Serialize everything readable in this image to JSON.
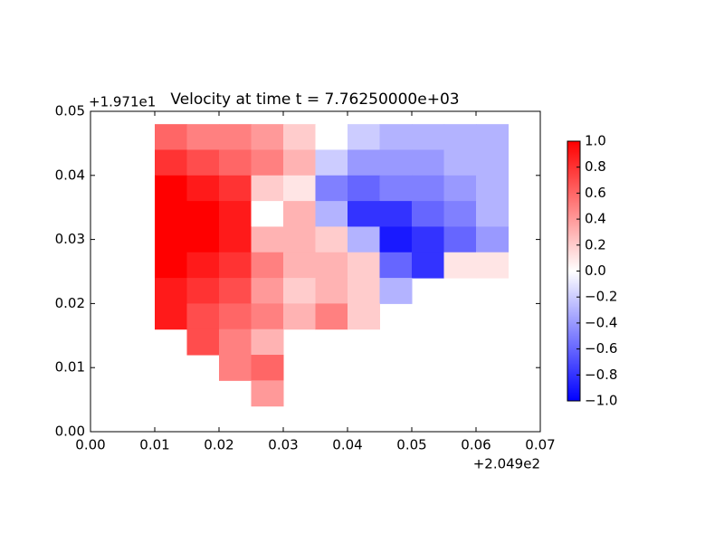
{
  "chart_data": {
    "type": "heatmap",
    "title": "Velocity at time t = 7.76250000e+03",
    "x_offset_label": "+2.049e2",
    "y_offset_label": "+1.971e1",
    "colormap": "bwr",
    "clim": [
      -1,
      1
    ],
    "xlim": [
      0,
      0.07
    ],
    "ylim": [
      0,
      0.05
    ],
    "xticks": [
      {
        "value": 0,
        "label": "0.00"
      },
      0.01,
      0.02,
      0.03,
      0.04,
      0.05,
      0.06,
      0.07
    ],
    "yticks": [
      {
        "value": 0,
        "label": "0.00"
      },
      0.01,
      0.02,
      0.03,
      0.04,
      0.05
    ],
    "colorbar_ticks": [
      {
        "value": -1,
        "label": "−1.0"
      },
      {
        "value": -0.8,
        "label": "−0.8"
      },
      {
        "value": -0.6,
        "label": "−0.6"
      },
      {
        "value": -0.4,
        "label": "−0.4"
      },
      {
        "value": -0.2,
        "label": "−0.2"
      },
      {
        "value": 0,
        "label": "0.0"
      },
      0.2,
      0.4,
      0.6,
      0.8,
      {
        "value": 1,
        "label": "1.0"
      }
    ],
    "x": [
      0.0075,
      0.0125,
      0.0175,
      0.0225,
      0.0275,
      0.0325,
      0.0375,
      0.0425,
      0.0475,
      0.0525,
      0.0575,
      0.0625
    ],
    "y": [
      0.046,
      0.042,
      0.038,
      0.034,
      0.03,
      0.026,
      0.022,
      0.018,
      0.014,
      0.01,
      0.006
    ],
    "z": [
      [
        null,
        0.6,
        0.5,
        0.5,
        0.4,
        0.2,
        0.0,
        -0.2,
        -0.3,
        -0.3,
        -0.3,
        -0.3
      ],
      [
        null,
        0.8,
        0.7,
        0.6,
        0.5,
        0.3,
        -0.2,
        -0.4,
        -0.4,
        -0.4,
        -0.3,
        -0.3
      ],
      [
        null,
        1.0,
        0.9,
        0.8,
        0.2,
        0.1,
        -0.5,
        -0.6,
        -0.5,
        -0.5,
        -0.4,
        -0.3
      ],
      [
        null,
        1.0,
        1.0,
        0.9,
        0.0,
        0.3,
        -0.3,
        -0.8,
        -0.8,
        -0.6,
        -0.5,
        -0.3
      ],
      [
        null,
        1.0,
        1.0,
        0.9,
        0.3,
        0.3,
        0.2,
        -0.3,
        -0.9,
        -0.8,
        -0.6,
        -0.4
      ],
      [
        null,
        1.0,
        0.9,
        0.8,
        0.5,
        0.3,
        0.3,
        0.2,
        -0.6,
        -0.8,
        0.1,
        0.1
      ],
      [
        null,
        0.9,
        0.8,
        0.7,
        0.4,
        0.2,
        0.3,
        0.2,
        -0.3,
        null,
        null,
        null
      ],
      [
        null,
        0.9,
        0.7,
        0.6,
        0.5,
        0.3,
        0.5,
        0.2,
        null,
        null,
        null,
        null
      ],
      [
        null,
        null,
        0.7,
        0.5,
        0.3,
        null,
        null,
        null,
        null,
        null,
        null,
        null
      ],
      [
        null,
        null,
        null,
        0.5,
        0.6,
        null,
        null,
        null,
        null,
        null,
        null,
        null
      ],
      [
        null,
        null,
        null,
        null,
        0.4,
        null,
        null,
        null,
        null,
        null,
        null,
        null
      ]
    ]
  }
}
